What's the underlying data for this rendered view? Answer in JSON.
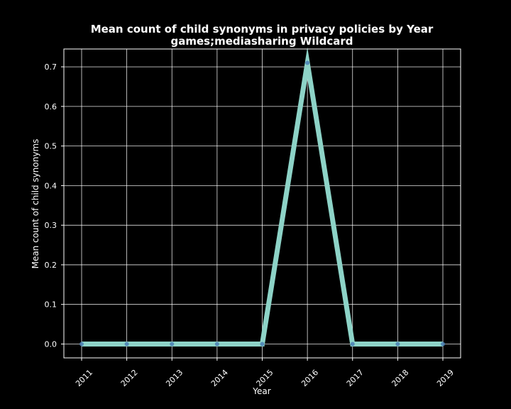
{
  "chart_data": {
    "type": "line",
    "title": "Mean count of child synonyms in privacy policies by Year",
    "subtitle": "games;mediasharing Wildcard",
    "xlabel": "Year",
    "ylabel": "Mean count of child synonyms",
    "x": [
      "2011",
      "2012",
      "2013",
      "2014",
      "2015",
      "2016",
      "2017",
      "2018",
      "2019"
    ],
    "series": [
      {
        "values": [
          0.0,
          0.0,
          0.0,
          0.0,
          0.0,
          0.71,
          0.0,
          0.0,
          0.0
        ]
      }
    ],
    "ylim": [
      -0.035,
      0.745
    ],
    "yticks": [
      "0.0",
      "0.1",
      "0.2",
      "0.3",
      "0.4",
      "0.5",
      "0.6",
      "0.7"
    ],
    "grid": true,
    "legend": "none",
    "colors": {
      "background": "#000000",
      "foreground": "#ffffff",
      "line": "#8dd3c7",
      "marker": "#4a7fb5"
    }
  }
}
